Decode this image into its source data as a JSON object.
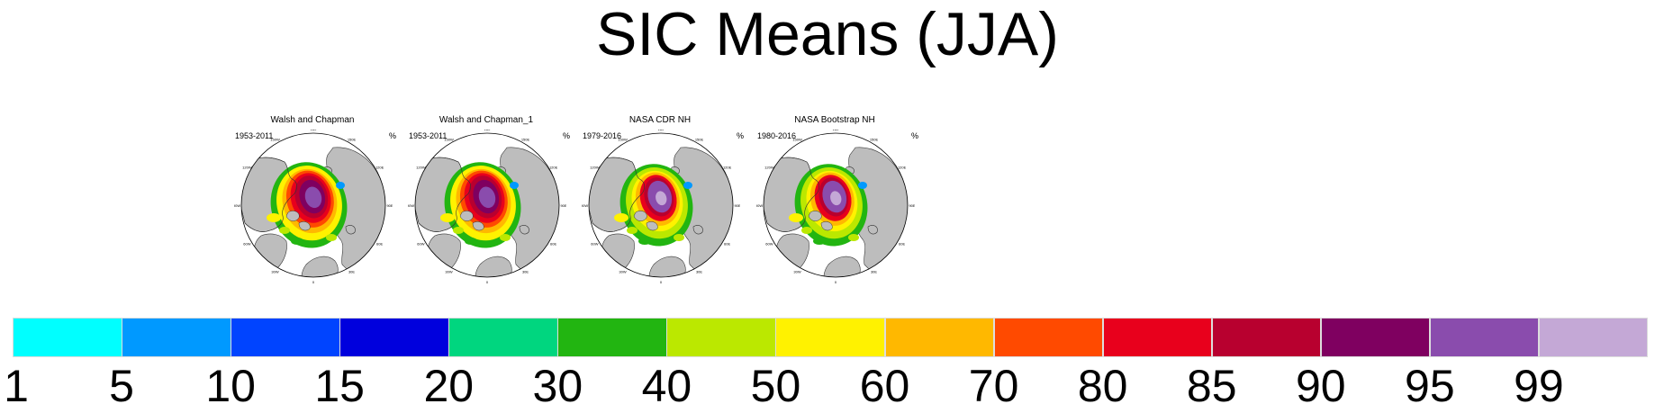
{
  "title": "SIC Means (JJA)",
  "panels": [
    {
      "title": "Walsh and Chapman",
      "period": "1953-2011",
      "unit": "%",
      "pattern": "wc"
    },
    {
      "title": "Walsh and Chapman_1",
      "period": "1953-2011",
      "unit": "%",
      "pattern": "wc"
    },
    {
      "title": "NASA CDR NH",
      "period": "1979-2016",
      "unit": "%",
      "pattern": "nasa"
    },
    {
      "title": "NASA Bootstrap NH",
      "period": "1980-2016",
      "unit": "%",
      "pattern": "nasa"
    }
  ],
  "longitude_labels": [
    "180",
    "150E",
    "120E",
    "90E",
    "60E",
    "30E",
    "0",
    "30W",
    "60W",
    "90W",
    "120W",
    "150W"
  ],
  "colorbar": {
    "levels": [
      "1",
      "5",
      "10",
      "15",
      "20",
      "30",
      "40",
      "50",
      "60",
      "70",
      "80",
      "85",
      "90",
      "95",
      "99"
    ],
    "colors": [
      "#00ffff",
      "#0099ff",
      "#0044ff",
      "#0000dd",
      "#00d67f",
      "#22b511",
      "#bbe800",
      "#fff200",
      "#ffb800",
      "#ff4a00",
      "#e8001c",
      "#b8002f",
      "#7f0060",
      "#8a4cad",
      "#c4a8d6"
    ]
  },
  "colors": {
    "land": "#bdbdbd",
    "ocean": "#ffffff",
    "coast": "#333333"
  }
}
